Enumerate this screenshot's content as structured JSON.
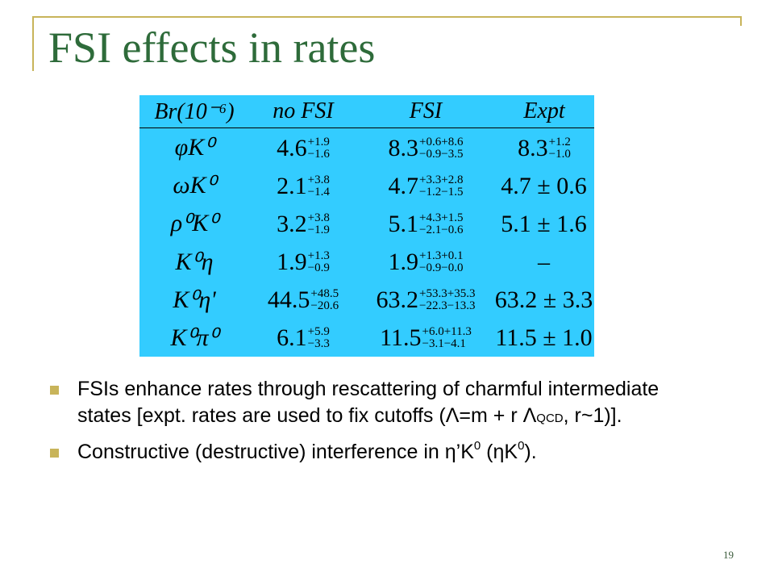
{
  "slide": {
    "title": "FSI effects in rates",
    "page_number": "19",
    "frame_color": "#c8b45a",
    "title_color": "#2e6b3a",
    "table_background": "#33ccff"
  },
  "table": {
    "headers": {
      "label": "Br(10⁻⁶)",
      "nofsi": "no FSI",
      "fsi": "FSI",
      "expt": "Expt"
    },
    "rows": [
      {
        "mode": "φK⁰",
        "nofsi": {
          "value": "4.6",
          "up": "+1.9",
          "down": "−1.6"
        },
        "fsi": {
          "value": "8.3",
          "up": "+0.6+8.6",
          "down": "−0.9−3.5"
        },
        "expt": {
          "value": "8.3",
          "up": "+1.2",
          "down": "−1.0"
        }
      },
      {
        "mode": "ωK⁰",
        "nofsi": {
          "value": "2.1",
          "up": "+3.8",
          "down": "−1.4"
        },
        "fsi": {
          "value": "4.7",
          "up": "+3.3+2.8",
          "down": "−1.2−1.5"
        },
        "expt": {
          "value": "4.7 ± 0.6",
          "up": "",
          "down": ""
        }
      },
      {
        "mode": "ρ⁰K⁰",
        "nofsi": {
          "value": "3.2",
          "up": "+3.8",
          "down": "−1.9"
        },
        "fsi": {
          "value": "5.1",
          "up": "+4.3+1.5",
          "down": "−2.1−0.6"
        },
        "expt": {
          "value": "5.1 ± 1.6",
          "up": "",
          "down": ""
        }
      },
      {
        "mode": "K⁰η",
        "nofsi": {
          "value": "1.9",
          "up": "+1.3",
          "down": "−0.9"
        },
        "fsi": {
          "value": "1.9",
          "up": "+1.3+0.1",
          "down": "−0.9−0.0"
        },
        "expt": {
          "value": "–",
          "up": "",
          "down": ""
        }
      },
      {
        "mode": "K⁰η'",
        "nofsi": {
          "value": "44.5",
          "up": "+48.5",
          "down": "−20.6"
        },
        "fsi": {
          "value": "63.2",
          "up": "+53.3+35.3",
          "down": "−22.3−13.3"
        },
        "expt": {
          "value": "63.2 ± 3.3",
          "up": "",
          "down": ""
        }
      },
      {
        "mode": "K⁰π⁰",
        "nofsi": {
          "value": "6.1",
          "up": "+5.9",
          "down": "−3.3"
        },
        "fsi": {
          "value": "11.5",
          "up": "+6.0+11.3",
          "down": "−3.1−4.1"
        },
        "expt": {
          "value": "11.5 ± 1.0",
          "up": "",
          "down": ""
        }
      }
    ]
  },
  "bullets": {
    "b1": {
      "text_main": "FSIs enhance rates through rescattering of charmful intermediate states [expt. rates are used to fix cutoffs (Λ=m + r Λ",
      "subscript": "QCD",
      "text_end": ", r~1)]."
    },
    "b2": {
      "text_a": "Constructive (destructive) interference in η’K",
      "sup1": "0",
      "text_b": " (ηK",
      "sup2": "0",
      "text_c": ")."
    }
  }
}
